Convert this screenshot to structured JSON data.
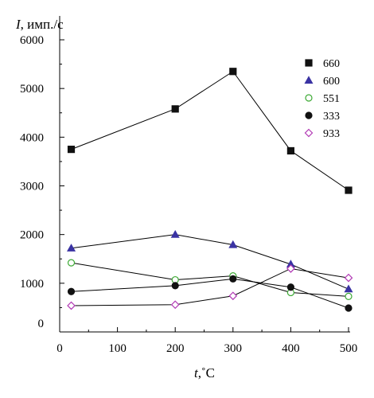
{
  "chart_data": {
    "type": "line",
    "ylabel": "I, имп./с",
    "ylabel_var": "I",
    "ylabel_unit": ", имп./с",
    "xlabel": "t,˚C",
    "xlabel_var": "t",
    "xlabel_unit": ",˚C",
    "xlim": [
      0,
      500
    ],
    "ylim": [
      0,
      6000
    ],
    "xticks": [
      0,
      100,
      200,
      300,
      400,
      500
    ],
    "yticks": [
      0,
      1000,
      2000,
      3000,
      4000,
      5000,
      6000
    ],
    "grid": false,
    "legend_position": "top-right",
    "series": [
      {
        "name": "660",
        "marker": "square",
        "filled": true,
        "color": "#111111",
        "x": [
          20,
          200,
          300,
          400,
          500
        ],
        "y": [
          3750,
          4580,
          5350,
          3720,
          2910
        ]
      },
      {
        "name": "600",
        "marker": "triangle",
        "filled": true,
        "color": "#3a33a3",
        "x": [
          20,
          200,
          300,
          400,
          500
        ],
        "y": [
          1720,
          2000,
          1790,
          1390,
          880
        ]
      },
      {
        "name": "551",
        "marker": "circle",
        "filled": false,
        "color": "#3daa35",
        "x": [
          20,
          200,
          300,
          400,
          500
        ],
        "y": [
          1420,
          1070,
          1150,
          810,
          730
        ]
      },
      {
        "name": "333",
        "marker": "circle",
        "filled": true,
        "color": "#111111",
        "x": [
          20,
          200,
          300,
          400,
          500
        ],
        "y": [
          830,
          950,
          1090,
          920,
          490
        ]
      },
      {
        "name": "933",
        "marker": "diamond",
        "filled": false,
        "color": "#b23ab5",
        "x": [
          20,
          200,
          300,
          400,
          500
        ],
        "y": [
          540,
          560,
          740,
          1300,
          1110
        ]
      }
    ]
  }
}
